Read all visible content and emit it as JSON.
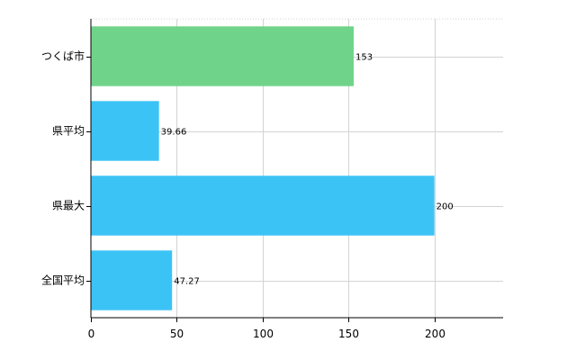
{
  "chart_data": {
    "type": "bar",
    "orientation": "horizontal",
    "categories": [
      "つくば市",
      "県平均",
      "県最大",
      "全国平均"
    ],
    "values": [
      153,
      39.66,
      200,
      47.27
    ],
    "value_labels": [
      "153",
      "39.66",
      "200",
      "47.27"
    ],
    "bar_colors": [
      "#6fd48a",
      "#3cc3f5",
      "#3cc3f5",
      "#3cc3f5"
    ],
    "title": "",
    "xlabel": "",
    "ylabel": "",
    "xlim": [
      0,
      240
    ],
    "x_ticks": [
      0,
      50,
      100,
      150,
      200
    ],
    "x_tick_labels": [
      "0",
      "50",
      "100",
      "150",
      "200"
    ],
    "grid": true,
    "legend": "none"
  }
}
